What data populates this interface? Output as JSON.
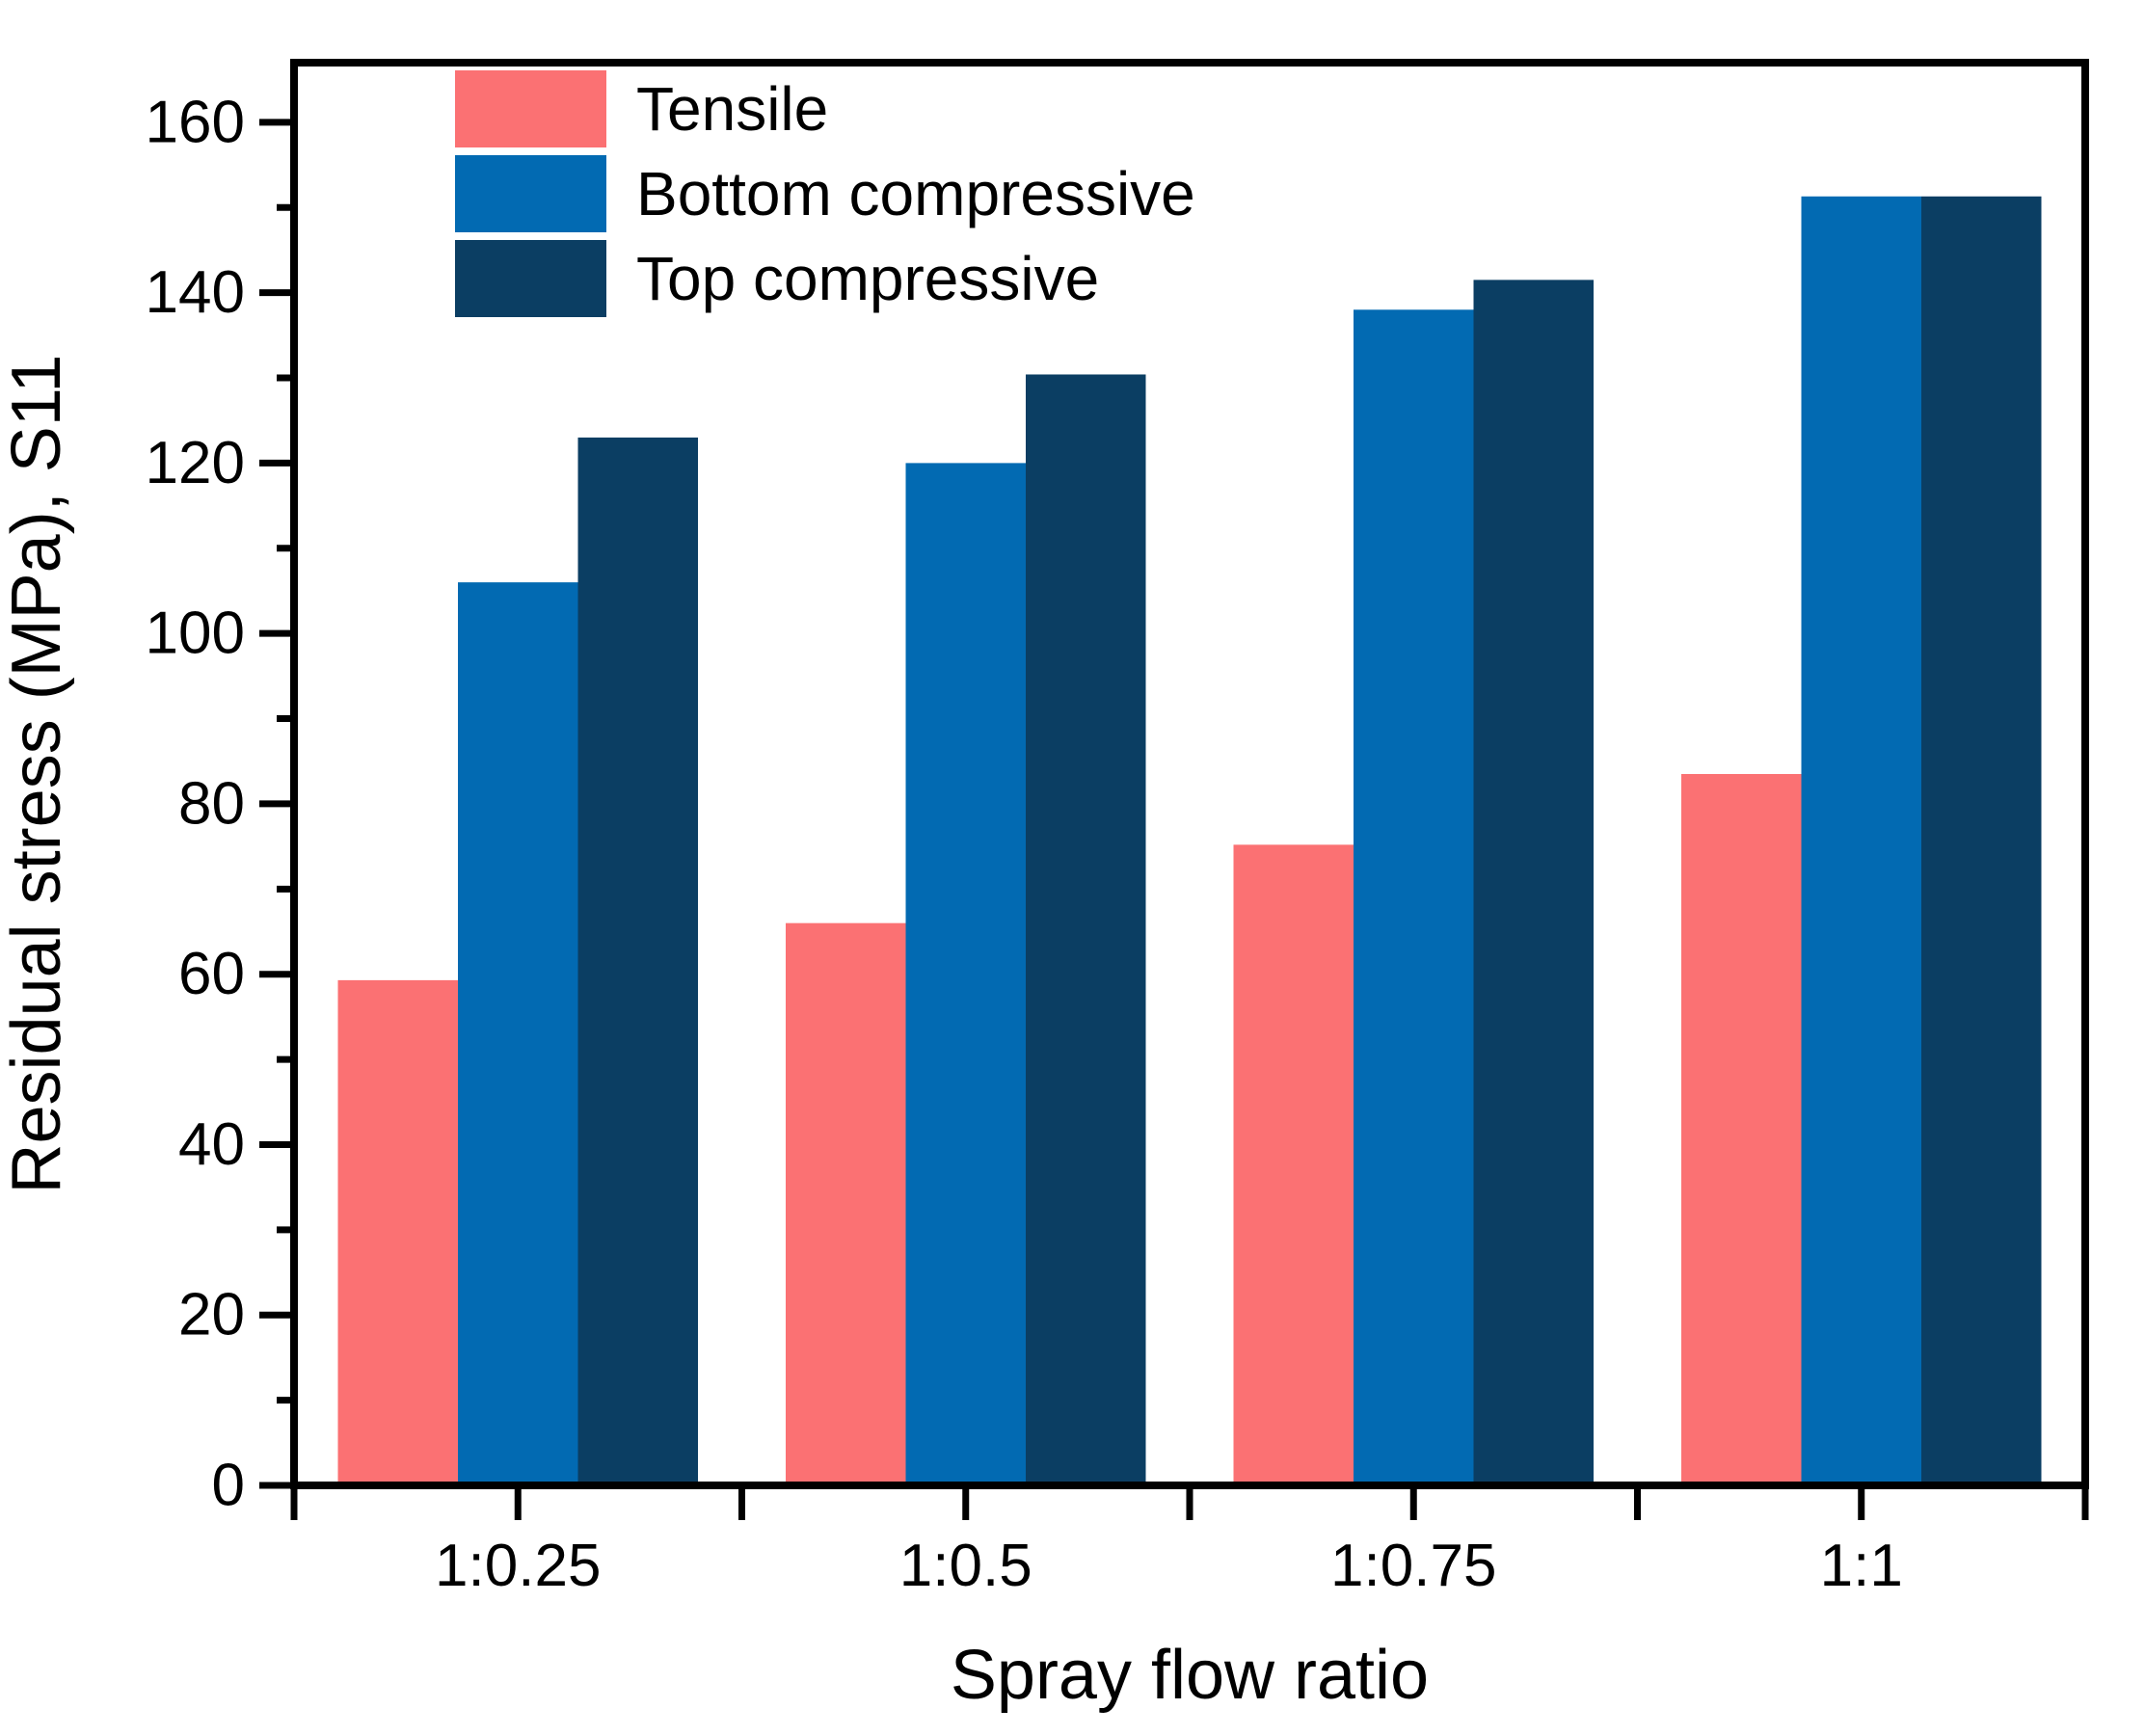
{
  "page": {
    "background": "#ffffff"
  },
  "chart_data": {
    "type": "bar",
    "title": "",
    "categories": [
      "1:0.25",
      "1:0.5",
      "1:0.75",
      "1:1"
    ],
    "series": [
      {
        "name": "Tensile",
        "color": "#fb7173",
        "values": [
          59.3,
          66.0,
          75.2,
          83.5
        ]
      },
      {
        "name": "Bottom compressive",
        "color": "#026ab2",
        "values": [
          106.0,
          120.0,
          138.0,
          151.3
        ]
      },
      {
        "name": "Top compressive",
        "color": "#0b3e63",
        "values": [
          123.0,
          130.4,
          141.5,
          151.3
        ]
      }
    ],
    "xlabel": "Spray flow ratio",
    "ylabel": "Residual stress (MPa), S11",
    "ylim": [
      0,
      167
    ],
    "y_major_ticks": [
      0,
      20,
      40,
      60,
      80,
      100,
      120,
      140,
      160
    ],
    "y_minor_ticks": [
      10,
      30,
      50,
      70,
      90,
      110,
      130,
      150
    ],
    "grid": false,
    "legend_position": "top-left-inside",
    "axis_color": "#000000",
    "text_color": "#000000"
  }
}
